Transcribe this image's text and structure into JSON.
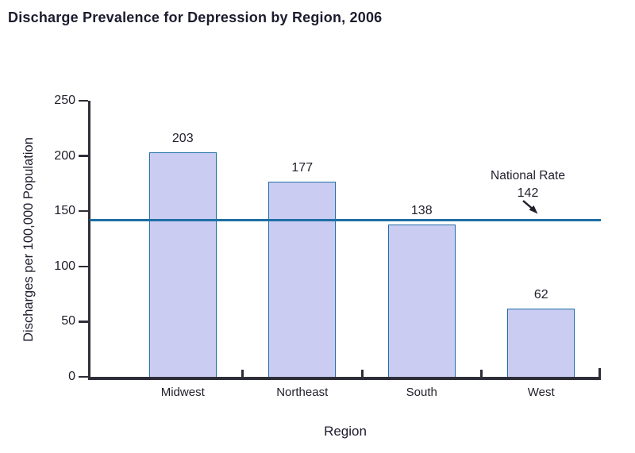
{
  "page": {
    "title": "Discharge Prevalence for Depression by Region, 2006"
  },
  "chart_data": {
    "type": "bar",
    "title": "Discharge Prevalence for Depression by Region, 2006",
    "categories": [
      "Midwest",
      "Northeast",
      "South",
      "West"
    ],
    "values": [
      203,
      177,
      138,
      62
    ],
    "bar_labels": [
      "203",
      "177",
      "138",
      "62"
    ],
    "xlabel": "Region",
    "ylabel": "Discharges per 100,000 Population",
    "ylim": [
      0,
      250
    ],
    "yticks": [
      0,
      50,
      100,
      150,
      200,
      250
    ],
    "grid": false,
    "legend": "none",
    "reference_line": {
      "value": 142,
      "label": "National Rate",
      "value_label": "142"
    },
    "colors": {
      "bar_fill": "#cbccf2",
      "bar_border": "#1e6fa5",
      "reference_line": "#1e6fa5",
      "axis": "#2e2e38",
      "text": "#1f1f2b"
    }
  }
}
